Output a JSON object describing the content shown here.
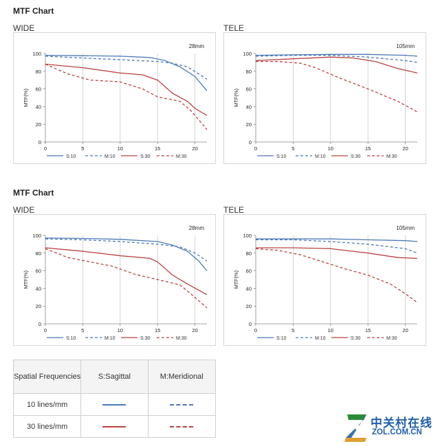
{
  "sections": [
    {
      "title": "MTF Chart",
      "panels": [
        {
          "label": "WIDE",
          "chart_index": 0
        },
        {
          "label": "TELE",
          "chart_index": 1
        }
      ]
    },
    {
      "title": "MTF Chart",
      "panels": [
        {
          "label": "WIDE",
          "chart_index": 2
        },
        {
          "label": "TELE",
          "chart_index": 3
        }
      ]
    }
  ],
  "legend_key": {
    "header": [
      "Spatial Frequencies",
      "S:Sagittal",
      "M:Meridional"
    ],
    "rows": [
      {
        "label": "10 lines/mm",
        "color": "#4a78b7"
      },
      {
        "label": "30 lines/mm",
        "color": "#b9403d"
      }
    ]
  },
  "logo": {
    "chinese": "中关村在线",
    "domain": "ZOL.COM.CN"
  },
  "colors": {
    "s10": "#4a78b7",
    "m10": "#4a78b7",
    "s30": "#b9403d",
    "m30": "#b9403d"
  },
  "chart_data": [
    {
      "type": "line",
      "title": "28mm",
      "xlabel": "",
      "ylabel": "MTF(%)",
      "xlim": [
        0,
        21.6
      ],
      "ylim": [
        0,
        100
      ],
      "xticks": [
        0,
        5,
        10,
        15,
        20
      ],
      "yticks": [
        0,
        20,
        40,
        60,
        80,
        100
      ],
      "grid": "vertical",
      "legend": "bottom",
      "series": [
        {
          "name": "S:10",
          "style": "solid",
          "color": "#4a78b7",
          "x": [
            0,
            5,
            10,
            14,
            16,
            18,
            20,
            21.6
          ],
          "y": [
            98,
            97.5,
            97,
            95.5,
            92,
            85,
            74,
            58
          ]
        },
        {
          "name": "M:10",
          "style": "dashed",
          "color": "#4a78b7",
          "x": [
            0,
            5,
            10,
            15,
            17,
            19,
            21.6
          ],
          "y": [
            97,
            95,
            93,
            91,
            89,
            85,
            71
          ]
        },
        {
          "name": "S:30",
          "style": "solid",
          "color": "#b9403d",
          "x": [
            0,
            5,
            10,
            13,
            15,
            17,
            19,
            20,
            21.6
          ],
          "y": [
            88,
            84,
            78,
            76,
            70,
            55,
            46,
            38,
            30
          ]
        },
        {
          "name": "M:30",
          "style": "dashed",
          "color": "#b9403d",
          "x": [
            0,
            3,
            6,
            10,
            13,
            15,
            18,
            19.5,
            21.6
          ],
          "y": [
            88,
            77,
            70,
            68,
            60,
            51,
            46,
            35,
            14
          ]
        }
      ]
    },
    {
      "type": "line",
      "title": "105mm",
      "xlabel": "",
      "ylabel": "MTF(%)",
      "xlim": [
        0,
        21.6
      ],
      "ylim": [
        0,
        100
      ],
      "xticks": [
        0,
        5,
        10,
        15,
        20
      ],
      "yticks": [
        0,
        20,
        40,
        60,
        80,
        100
      ],
      "grid": "vertical",
      "legend": "bottom",
      "series": [
        {
          "name": "S:10",
          "style": "solid",
          "color": "#4a78b7",
          "x": [
            0,
            5,
            10,
            15,
            20,
            21.6
          ],
          "y": [
            98,
            98.5,
            99,
            99,
            98,
            97
          ]
        },
        {
          "name": "M:10",
          "style": "dashed",
          "color": "#4a78b7",
          "x": [
            0,
            5,
            10,
            15,
            20,
            21.6
          ],
          "y": [
            97,
            98,
            98,
            96,
            92,
            90
          ]
        },
        {
          "name": "S:30",
          "style": "solid",
          "color": "#b9403d",
          "x": [
            0,
            5,
            10,
            13,
            16,
            19,
            21.6
          ],
          "y": [
            92,
            94,
            96,
            95,
            91,
            83,
            78
          ]
        },
        {
          "name": "M:30",
          "style": "dashed",
          "color": "#b9403d",
          "x": [
            0,
            3,
            6,
            8,
            11,
            15,
            19,
            21.6
          ],
          "y": [
            91,
            91,
            89,
            84,
            73,
            60,
            46,
            34
          ]
        }
      ]
    },
    {
      "type": "line",
      "title": "28mm",
      "xlabel": "",
      "ylabel": "MTF(%)",
      "xlim": [
        0,
        21.6
      ],
      "ylim": [
        0,
        100
      ],
      "xticks": [
        0,
        5,
        10,
        15,
        20
      ],
      "yticks": [
        0,
        20,
        40,
        60,
        80,
        100
      ],
      "grid": "vertical",
      "legend": "bottom",
      "series": [
        {
          "name": "S:10",
          "style": "solid",
          "color": "#4a78b7",
          "x": [
            0,
            5,
            10,
            15,
            17,
            19,
            20.5,
            21.6
          ],
          "y": [
            97,
            96.5,
            95.5,
            93,
            89,
            82,
            71,
            60
          ]
        },
        {
          "name": "M:10",
          "style": "dashed",
          "color": "#4a78b7",
          "x": [
            0,
            5,
            10,
            15,
            18,
            20,
            21.6
          ],
          "y": [
            96,
            95,
            93,
            90,
            87,
            80,
            71
          ]
        },
        {
          "name": "S:30",
          "style": "solid",
          "color": "#b9403d",
          "x": [
            0,
            5,
            10,
            14,
            15,
            17,
            19,
            21.6
          ],
          "y": [
            86,
            82,
            77,
            74,
            70,
            55,
            45,
            33
          ]
        },
        {
          "name": "M:30",
          "style": "dashed",
          "color": "#b9403d",
          "x": [
            0,
            3,
            6,
            9,
            12,
            15,
            18,
            20,
            21.6
          ],
          "y": [
            85,
            75,
            70,
            65,
            56,
            50,
            44,
            30,
            18
          ]
        }
      ]
    },
    {
      "type": "line",
      "title": "105mm",
      "xlabel": "",
      "ylabel": "MTF(%)",
      "xlim": [
        0,
        21.6
      ],
      "ylim": [
        0,
        100
      ],
      "xticks": [
        0,
        5,
        10,
        15,
        20
      ],
      "yticks": [
        0,
        20,
        40,
        60,
        80,
        100
      ],
      "grid": "vertical",
      "legend": "bottom",
      "series": [
        {
          "name": "S:10",
          "style": "solid",
          "color": "#4a78b7",
          "x": [
            0,
            5,
            10,
            15,
            20,
            21.6
          ],
          "y": [
            96,
            96,
            96,
            95,
            94,
            93
          ]
        },
        {
          "name": "M:10",
          "style": "dashed",
          "color": "#4a78b7",
          "x": [
            0,
            5,
            10,
            15,
            18,
            20,
            21.6
          ],
          "y": [
            95,
            95,
            93,
            90,
            87,
            85,
            80
          ]
        },
        {
          "name": "S:30",
          "style": "solid",
          "color": "#b9403d",
          "x": [
            0,
            5,
            10,
            15,
            19,
            21.6
          ],
          "y": [
            86,
            86,
            85,
            80,
            75,
            74
          ]
        },
        {
          "name": "M:30",
          "style": "dashed",
          "color": "#b9403d",
          "x": [
            0,
            3,
            6,
            9,
            12,
            15,
            18,
            20,
            21.6
          ],
          "y": [
            85,
            83,
            78,
            70,
            62,
            55,
            45,
            34,
            24
          ]
        }
      ]
    }
  ]
}
